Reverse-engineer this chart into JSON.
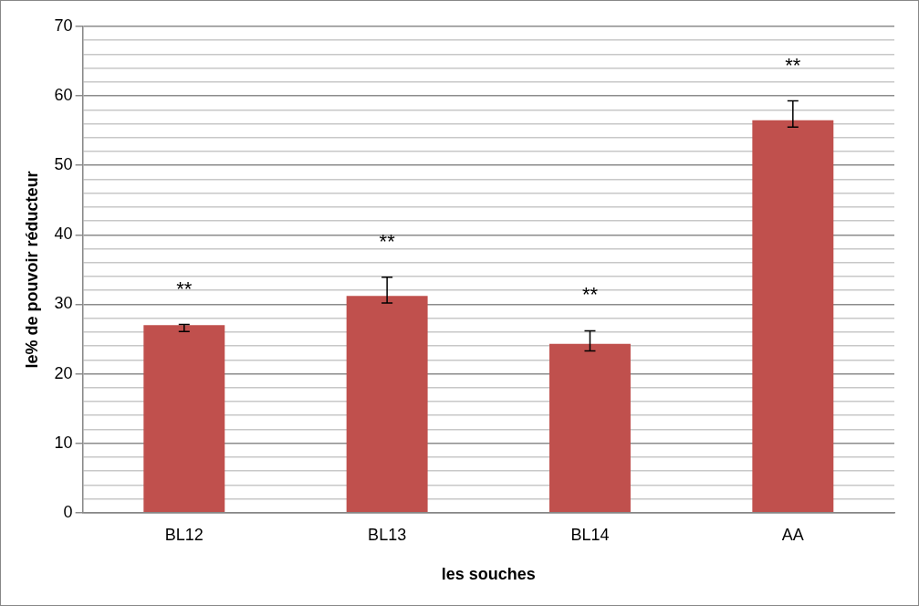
{
  "chart_data": {
    "type": "bar",
    "xlabel": "les souches",
    "ylabel": "le% de pouvoir réducteur",
    "categories": [
      "BL12",
      "BL13",
      "BL14",
      "AA"
    ],
    "values": [
      27.0,
      31.2,
      24.3,
      56.5
    ],
    "errors": [
      [
        26.1,
        27.1
      ],
      [
        30.2,
        33.9
      ],
      [
        23.3,
        26.2
      ],
      [
        55.5,
        59.3
      ]
    ],
    "color": "#c0504d",
    "ylim": [
      0,
      70
    ],
    "yticks": [
      0,
      {
        "value": 2,
        "label": null
      },
      {
        "value": 4,
        "label": null
      },
      {
        "value": 6,
        "label": null
      },
      {
        "value": 8,
        "label": null
      },
      10,
      {
        "value": 12,
        "label": null
      },
      {
        "value": 14,
        "label": null
      },
      {
        "value": 16,
        "label": null
      },
      {
        "value": 18,
        "label": null
      },
      20,
      {
        "value": 22,
        "label": null
      },
      {
        "value": 24,
        "label": null
      },
      {
        "value": 26,
        "label": null
      },
      {
        "value": 28,
        "label": null
      },
      30,
      {
        "value": 32,
        "label": null
      },
      {
        "value": 34,
        "label": null
      },
      {
        "value": 36,
        "label": null
      },
      {
        "value": 38,
        "label": null
      },
      40,
      {
        "value": 42,
        "label": null
      },
      {
        "value": 44,
        "label": null
      },
      {
        "value": 46,
        "label": null
      },
      {
        "value": 48,
        "label": null
      },
      50,
      {
        "value": 52,
        "label": null
      },
      {
        "value": 54,
        "label": null
      },
      {
        "value": 56,
        "label": null
      },
      {
        "value": 58,
        "label": null
      },
      60,
      {
        "value": 62,
        "label": null
      },
      {
        "value": 64,
        "label": null
      },
      {
        "value": 66,
        "label": null
      },
      {
        "value": 68,
        "label": null
      },
      70
    ],
    "grid": "y",
    "legend": false,
    "annotations": [
      "**",
      "**",
      "**",
      "**"
    ]
  }
}
